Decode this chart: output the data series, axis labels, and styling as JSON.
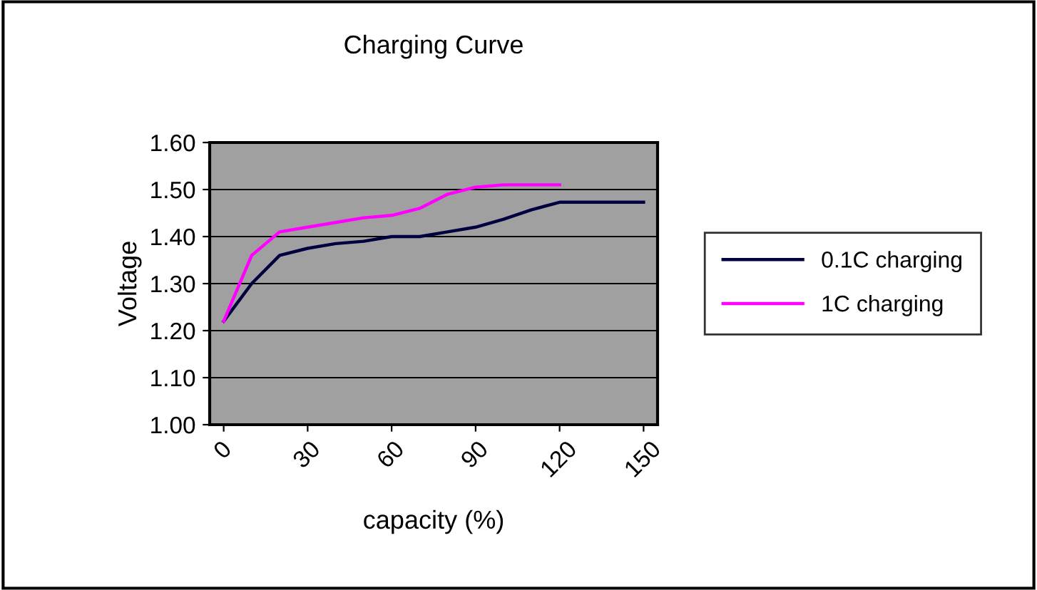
{
  "chart_data": {
    "type": "line",
    "title": "Charging Curve",
    "xlabel": "capacity (%)",
    "ylabel": "Voltage",
    "x": [
      0,
      10,
      20,
      30,
      40,
      50,
      60,
      70,
      80,
      90,
      100,
      110,
      120,
      130,
      140,
      150
    ],
    "series": [
      {
        "name": "0.1C charging",
        "color": "#000040",
        "values": [
          1.22,
          1.3,
          1.36,
          1.375,
          1.385,
          1.39,
          1.4,
          1.4,
          1.41,
          1.42,
          1.437,
          1.457,
          1.473,
          1.473,
          1.473,
          1.473
        ]
      },
      {
        "name": "1C charging",
        "color": "#ff00ff",
        "values": [
          1.22,
          1.36,
          1.41,
          1.42,
          1.43,
          1.44,
          1.445,
          1.46,
          1.49,
          1.505,
          1.51,
          1.51,
          1.51,
          null,
          null,
          null
        ]
      }
    ],
    "xlim": [
      -5,
      155
    ],
    "xticks": [
      0,
      30,
      60,
      90,
      120,
      150
    ],
    "ylim": [
      1.0,
      1.6
    ],
    "yticks": [
      {
        "value": 1.0,
        "label": "1.00"
      },
      {
        "value": 1.1,
        "label": "1.10"
      },
      {
        "value": 1.2,
        "label": "1.20"
      },
      {
        "value": 1.3,
        "label": "1.30"
      },
      {
        "value": 1.4,
        "label": "1.40"
      },
      {
        "value": 1.5,
        "label": "1.50"
      },
      {
        "value": 1.6,
        "label": "1.60"
      }
    ],
    "grid": "y",
    "legend": "right",
    "marker": "none",
    "line_style": "solid"
  }
}
